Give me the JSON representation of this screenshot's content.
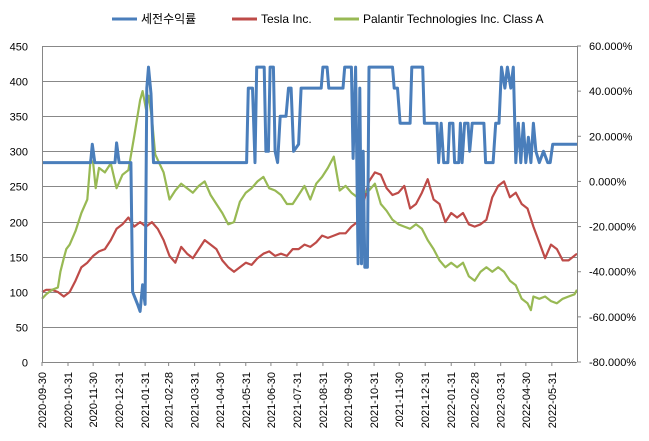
{
  "chart_data": {
    "type": "line",
    "legend_position": "top",
    "grid": "horizontal",
    "series": [
      {
        "name": "세전수익률",
        "axis": "left",
        "color": "#4a7ebb"
      },
      {
        "name": "Tesla Inc.",
        "axis": "right",
        "color": "#be4b48"
      },
      {
        "name": "Palantir Technologies Inc. Class A",
        "axis": "right",
        "color": "#98b954"
      }
    ],
    "y_left": {
      "min": 0,
      "max": 450,
      "step": 50,
      "ticks": [
        "0",
        "50",
        "100",
        "150",
        "200",
        "250",
        "300",
        "350",
        "400",
        "450"
      ]
    },
    "y_right": {
      "min": -80,
      "max": 60,
      "step": 20,
      "ticks": [
        "-80.000%",
        "-60.000%",
        "-40.000%",
        "-20.000%",
        "0.000%",
        "20.000%",
        "40.000%",
        "60.000%"
      ]
    },
    "x_ticks": [
      "2020-09-30",
      "2020-10-31",
      "2020-11-30",
      "2020-12-31",
      "2021-01-31",
      "2021-02-28",
      "2021-03-31",
      "2021-04-30",
      "2021-05-31",
      "2021-06-30",
      "2021-07-31",
      "2021-08-31",
      "2021-09-30",
      "2021-10-31",
      "2021-11-30",
      "2021-12-31",
      "2022-01-31",
      "2022-02-28",
      "2022-03-31",
      "2022-04-30",
      "2022-05-31"
    ],
    "x_range": [
      "2020-09-30",
      "2022-06-30"
    ],
    "values": {
      "세전수익률": [
        [
          "2020-09-30",
          284
        ],
        [
          "2020-11-27",
          284
        ],
        [
          "2020-11-29",
          310
        ],
        [
          "2020-12-02",
          284
        ],
        [
          "2020-12-26",
          284
        ],
        [
          "2020-12-28",
          312
        ],
        [
          "2020-12-31",
          284
        ],
        [
          "2021-01-14",
          284
        ],
        [
          "2021-01-16",
          100
        ],
        [
          "2021-01-22",
          82
        ],
        [
          "2021-01-25",
          72
        ],
        [
          "2021-01-28",
          110
        ],
        [
          "2021-01-31",
          82
        ],
        [
          "2021-02-02",
          390
        ],
        [
          "2021-02-04",
          420
        ],
        [
          "2021-02-07",
          382
        ],
        [
          "2021-02-10",
          284
        ],
        [
          "2021-06-01",
          284
        ],
        [
          "2021-06-03",
          390
        ],
        [
          "2021-06-08",
          390
        ],
        [
          "2021-06-11",
          284
        ],
        [
          "2021-06-13",
          420
        ],
        [
          "2021-06-22",
          420
        ],
        [
          "2021-06-24",
          300
        ],
        [
          "2021-06-27",
          300
        ],
        [
          "2021-06-29",
          420
        ],
        [
          "2021-07-03",
          420
        ],
        [
          "2021-07-05",
          300
        ],
        [
          "2021-07-08",
          284
        ],
        [
          "2021-07-11",
          350
        ],
        [
          "2021-07-18",
          350
        ],
        [
          "2021-07-21",
          390
        ],
        [
          "2021-07-24",
          390
        ],
        [
          "2021-07-27",
          300
        ],
        [
          "2021-08-02",
          310
        ],
        [
          "2021-08-05",
          390
        ],
        [
          "2021-08-29",
          390
        ],
        [
          "2021-08-31",
          420
        ],
        [
          "2021-09-05",
          420
        ],
        [
          "2021-09-07",
          390
        ],
        [
          "2021-09-24",
          390
        ],
        [
          "2021-09-26",
          420
        ],
        [
          "2021-10-04",
          420
        ],
        [
          "2021-10-06",
          290
        ],
        [
          "2021-10-09",
          420
        ],
        [
          "2021-10-12",
          140
        ],
        [
          "2021-10-14",
          390
        ],
        [
          "2021-10-16",
          140
        ],
        [
          "2021-10-18",
          300
        ],
        [
          "2021-10-20",
          135
        ],
        [
          "2021-10-23",
          135
        ],
        [
          "2021-10-25",
          420
        ],
        [
          "2021-11-22",
          420
        ],
        [
          "2021-11-24",
          390
        ],
        [
          "2021-11-28",
          390
        ],
        [
          "2021-12-01",
          340
        ],
        [
          "2021-12-13",
          340
        ],
        [
          "2021-12-15",
          420
        ],
        [
          "2021-12-28",
          420
        ],
        [
          "2021-12-30",
          340
        ],
        [
          "2022-01-14",
          340
        ],
        [
          "2022-01-16",
          284
        ],
        [
          "2022-01-19",
          340
        ],
        [
          "2022-01-22",
          284
        ],
        [
          "2022-01-27",
          284
        ],
        [
          "2022-01-29",
          340
        ],
        [
          "2022-02-02",
          340
        ],
        [
          "2022-02-04",
          284
        ],
        [
          "2022-02-09",
          284
        ],
        [
          "2022-02-11",
          340
        ],
        [
          "2022-02-13",
          284
        ],
        [
          "2022-02-16",
          340
        ],
        [
          "2022-02-20",
          340
        ],
        [
          "2022-02-22",
          300
        ],
        [
          "2022-02-25",
          340
        ],
        [
          "2022-03-11",
          340
        ],
        [
          "2022-03-13",
          284
        ],
        [
          "2022-03-22",
          284
        ],
        [
          "2022-03-25",
          340
        ],
        [
          "2022-03-29",
          340
        ],
        [
          "2022-04-01",
          420
        ],
        [
          "2022-04-05",
          390
        ],
        [
          "2022-04-08",
          420
        ],
        [
          "2022-04-12",
          390
        ],
        [
          "2022-04-15",
          420
        ],
        [
          "2022-04-18",
          284
        ],
        [
          "2022-04-21",
          340
        ],
        [
          "2022-04-24",
          284
        ],
        [
          "2022-04-27",
          340
        ],
        [
          "2022-04-30",
          284
        ],
        [
          "2022-05-03",
          320
        ],
        [
          "2022-05-06",
          284
        ],
        [
          "2022-05-09",
          340
        ],
        [
          "2022-05-12",
          300
        ],
        [
          "2022-05-16",
          284
        ],
        [
          "2022-05-21",
          300
        ],
        [
          "2022-05-26",
          284
        ],
        [
          "2022-05-29",
          284
        ],
        [
          "2022-06-01",
          310
        ],
        [
          "2022-06-30",
          310
        ]
      ],
      "Tesla Inc.": [
        [
          "2020-09-30",
          -49
        ],
        [
          "2020-10-05",
          -48
        ],
        [
          "2020-10-12",
          -48
        ],
        [
          "2020-10-19",
          -49
        ],
        [
          "2020-10-26",
          -51
        ],
        [
          "2020-11-02",
          -49
        ],
        [
          "2020-11-09",
          -44
        ],
        [
          "2020-11-16",
          -38
        ],
        [
          "2020-11-23",
          -36
        ],
        [
          "2020-11-30",
          -33
        ],
        [
          "2020-12-07",
          -31
        ],
        [
          "2020-12-14",
          -30
        ],
        [
          "2020-12-21",
          -26
        ],
        [
          "2020-12-28",
          -21
        ],
        [
          "2021-01-04",
          -19
        ],
        [
          "2021-01-11",
          -16
        ],
        [
          "2021-01-18",
          -20
        ],
        [
          "2021-01-25",
          -18
        ],
        [
          "2021-02-01",
          -20
        ],
        [
          "2021-02-08",
          -18
        ],
        [
          "2021-02-15",
          -21
        ],
        [
          "2021-02-22",
          -26
        ],
        [
          "2021-03-01",
          -33
        ],
        [
          "2021-03-08",
          -36
        ],
        [
          "2021-03-15",
          -29
        ],
        [
          "2021-03-22",
          -32
        ],
        [
          "2021-03-29",
          -34
        ],
        [
          "2021-04-05",
          -30
        ],
        [
          "2021-04-12",
          -26
        ],
        [
          "2021-04-19",
          -28
        ],
        [
          "2021-04-26",
          -30
        ],
        [
          "2021-05-03",
          -35
        ],
        [
          "2021-05-10",
          -38
        ],
        [
          "2021-05-17",
          -40
        ],
        [
          "2021-05-24",
          -38
        ],
        [
          "2021-05-31",
          -36
        ],
        [
          "2021-06-07",
          -37
        ],
        [
          "2021-06-14",
          -34
        ],
        [
          "2021-06-21",
          -32
        ],
        [
          "2021-06-28",
          -31
        ],
        [
          "2021-07-05",
          -33
        ],
        [
          "2021-07-12",
          -32
        ],
        [
          "2021-07-19",
          -33
        ],
        [
          "2021-07-26",
          -30
        ],
        [
          "2021-08-02",
          -30
        ],
        [
          "2021-08-09",
          -28
        ],
        [
          "2021-08-16",
          -29
        ],
        [
          "2021-08-23",
          -27
        ],
        [
          "2021-08-30",
          -24
        ],
        [
          "2021-09-06",
          -25
        ],
        [
          "2021-09-13",
          -24
        ],
        [
          "2021-09-20",
          -23
        ],
        [
          "2021-09-27",
          -23
        ],
        [
          "2021-10-04",
          -20
        ],
        [
          "2021-10-11",
          -18
        ],
        [
          "2021-10-18",
          -10
        ],
        [
          "2021-10-25",
          0
        ],
        [
          "2021-11-01",
          4
        ],
        [
          "2021-11-08",
          3
        ],
        [
          "2021-11-15",
          -3
        ],
        [
          "2021-11-22",
          -6
        ],
        [
          "2021-11-29",
          -5
        ],
        [
          "2021-12-06",
          -2
        ],
        [
          "2021-12-13",
          -12
        ],
        [
          "2021-12-20",
          -10
        ],
        [
          "2021-12-27",
          -5
        ],
        [
          "2022-01-03",
          1
        ],
        [
          "2022-01-10",
          -8
        ],
        [
          "2022-01-17",
          -10
        ],
        [
          "2022-01-24",
          -18
        ],
        [
          "2022-01-31",
          -14
        ],
        [
          "2022-02-07",
          -16
        ],
        [
          "2022-02-14",
          -14
        ],
        [
          "2022-02-21",
          -19
        ],
        [
          "2022-02-28",
          -20
        ],
        [
          "2022-03-07",
          -19
        ],
        [
          "2022-03-14",
          -17
        ],
        [
          "2022-03-21",
          -7
        ],
        [
          "2022-03-28",
          -2
        ],
        [
          "2022-04-04",
          0
        ],
        [
          "2022-04-11",
          -7
        ],
        [
          "2022-04-18",
          -5
        ],
        [
          "2022-04-25",
          -10
        ],
        [
          "2022-05-02",
          -12
        ],
        [
          "2022-05-09",
          -20
        ],
        [
          "2022-05-16",
          -27
        ],
        [
          "2022-05-23",
          -34
        ],
        [
          "2022-05-30",
          -28
        ],
        [
          "2022-06-06",
          -30
        ],
        [
          "2022-06-13",
          -35
        ],
        [
          "2022-06-20",
          -35
        ],
        [
          "2022-06-30",
          -32
        ]
      ],
      "Palantir Technologies Inc. Class A": [
        [
          "2020-09-30",
          -52
        ],
        [
          "2020-10-05",
          -50
        ],
        [
          "2020-10-12",
          -48
        ],
        [
          "2020-10-19",
          -47
        ],
        [
          "2020-10-22",
          -40
        ],
        [
          "2020-10-26",
          -34
        ],
        [
          "2020-10-29",
          -30
        ],
        [
          "2020-11-02",
          -28
        ],
        [
          "2020-11-09",
          -22
        ],
        [
          "2020-11-16",
          -14
        ],
        [
          "2020-11-23",
          -8
        ],
        [
          "2020-11-27",
          10
        ],
        [
          "2020-11-30",
          8
        ],
        [
          "2020-12-03",
          -3
        ],
        [
          "2020-12-07",
          6
        ],
        [
          "2020-12-14",
          4
        ],
        [
          "2020-12-21",
          8
        ],
        [
          "2020-12-28",
          -3
        ],
        [
          "2021-01-04",
          3
        ],
        [
          "2021-01-11",
          5
        ],
        [
          "2021-01-18",
          20
        ],
        [
          "2021-01-25",
          36
        ],
        [
          "2021-01-28",
          40
        ],
        [
          "2021-02-01",
          32
        ],
        [
          "2021-02-04",
          38
        ],
        [
          "2021-02-08",
          28
        ],
        [
          "2021-02-12",
          12
        ],
        [
          "2021-02-17",
          8
        ],
        [
          "2021-02-22",
          4
        ],
        [
          "2021-03-01",
          -8
        ],
        [
          "2021-03-08",
          -4
        ],
        [
          "2021-03-15",
          -1
        ],
        [
          "2021-03-22",
          -3
        ],
        [
          "2021-03-29",
          -5
        ],
        [
          "2021-04-05",
          -2
        ],
        [
          "2021-04-12",
          0
        ],
        [
          "2021-04-19",
          -6
        ],
        [
          "2021-04-26",
          -10
        ],
        [
          "2021-05-03",
          -14
        ],
        [
          "2021-05-10",
          -19
        ],
        [
          "2021-05-17",
          -18
        ],
        [
          "2021-05-24",
          -9
        ],
        [
          "2021-05-31",
          -5
        ],
        [
          "2021-06-07",
          -3
        ],
        [
          "2021-06-14",
          0
        ],
        [
          "2021-06-21",
          2
        ],
        [
          "2021-06-28",
          -3
        ],
        [
          "2021-07-05",
          -4
        ],
        [
          "2021-07-12",
          -6
        ],
        [
          "2021-07-19",
          -10
        ],
        [
          "2021-07-26",
          -10
        ],
        [
          "2021-08-02",
          -6
        ],
        [
          "2021-08-09",
          -2
        ],
        [
          "2021-08-16",
          -8
        ],
        [
          "2021-08-23",
          -1
        ],
        [
          "2021-08-30",
          2
        ],
        [
          "2021-09-06",
          6
        ],
        [
          "2021-09-13",
          11
        ],
        [
          "2021-09-20",
          -4
        ],
        [
          "2021-09-27",
          -2
        ],
        [
          "2021-10-04",
          -5
        ],
        [
          "2021-10-11",
          -7
        ],
        [
          "2021-10-18",
          -5
        ],
        [
          "2021-10-25",
          -4
        ],
        [
          "2021-11-01",
          -1
        ],
        [
          "2021-11-08",
          -10
        ],
        [
          "2021-11-15",
          -13
        ],
        [
          "2021-11-22",
          -17
        ],
        [
          "2021-11-29",
          -19
        ],
        [
          "2021-12-06",
          -20
        ],
        [
          "2021-12-13",
          -21
        ],
        [
          "2021-12-20",
          -19
        ],
        [
          "2021-12-27",
          -21
        ],
        [
          "2022-01-03",
          -26
        ],
        [
          "2022-01-10",
          -30
        ],
        [
          "2022-01-17",
          -35
        ],
        [
          "2022-01-24",
          -38
        ],
        [
          "2022-01-31",
          -36
        ],
        [
          "2022-02-07",
          -38
        ],
        [
          "2022-02-14",
          -36
        ],
        [
          "2022-02-21",
          -42
        ],
        [
          "2022-02-28",
          -44
        ],
        [
          "2022-03-07",
          -40
        ],
        [
          "2022-03-14",
          -38
        ],
        [
          "2022-03-21",
          -40
        ],
        [
          "2022-03-28",
          -38
        ],
        [
          "2022-04-04",
          -40
        ],
        [
          "2022-04-11",
          -44
        ],
        [
          "2022-04-18",
          -46
        ],
        [
          "2022-04-25",
          -52
        ],
        [
          "2022-05-02",
          -54
        ],
        [
          "2022-05-06",
          -57
        ],
        [
          "2022-05-09",
          -51
        ],
        [
          "2022-05-16",
          -52
        ],
        [
          "2022-05-23",
          -51
        ],
        [
          "2022-05-30",
          -53
        ],
        [
          "2022-06-06",
          -54
        ],
        [
          "2022-06-13",
          -52
        ],
        [
          "2022-06-20",
          -51
        ],
        [
          "2022-06-27",
          -50
        ],
        [
          "2022-06-30",
          -48
        ]
      ]
    }
  }
}
